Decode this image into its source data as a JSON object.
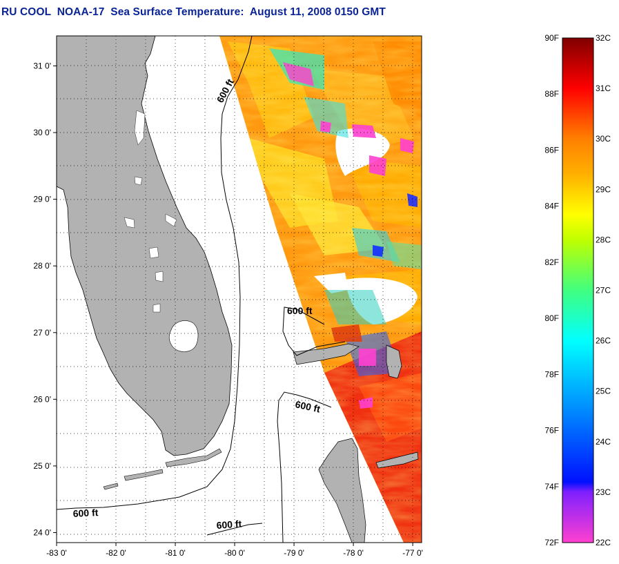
{
  "title": "RU COOL  NOAA-17  Sea Surface Temperature:  August 11, 2008 0150 GMT",
  "map": {
    "lon_range": [
      -83.0,
      -76.85
    ],
    "lat_range": [
      23.85,
      31.45
    ],
    "lon_ticks": [
      -83,
      -82,
      -81,
      -80,
      -79,
      -78,
      -77
    ],
    "lon_tick_labels": [
      "-83 0'",
      "-82 0'",
      "-81 0'",
      "-80 0'",
      "-79 0'",
      "-78 0'",
      "-77 0'"
    ],
    "lat_ticks": [
      24,
      25,
      26,
      27,
      28,
      29,
      30,
      31
    ],
    "lat_tick_labels": [
      "24 0'",
      "25 0'",
      "26 0'",
      "27 0'",
      "28 0'",
      "29 0'",
      "30 0'",
      "31 0'"
    ],
    "grid": "dotted",
    "land_color": "#b2b2b2",
    "contour": {
      "label": "600 ft",
      "label_count": 5
    }
  },
  "colorbar": {
    "fahrenheit_labels": [
      "90F",
      "88F",
      "86F",
      "84F",
      "82F",
      "80F",
      "78F",
      "76F",
      "74F",
      "72F"
    ],
    "celsius_labels": [
      "32C",
      "31C",
      "30C",
      "29C",
      "28C",
      "27C",
      "26C",
      "25C",
      "24C",
      "23C",
      "22C"
    ],
    "range_f": [
      72,
      90
    ],
    "range_c": [
      22,
      32
    ],
    "stops": [
      {
        "c": 22,
        "color": "#ff40d0"
      },
      {
        "c": 23,
        "color": "#8020ff"
      },
      {
        "c": 23.2,
        "color": "#0010ff"
      },
      {
        "c": 24.5,
        "color": "#0080ff"
      },
      {
        "c": 26,
        "color": "#00ffff"
      },
      {
        "c": 27,
        "color": "#40ff80"
      },
      {
        "c": 28,
        "color": "#c0ff00"
      },
      {
        "c": 28.5,
        "color": "#ffff00"
      },
      {
        "c": 29.3,
        "color": "#ffb000"
      },
      {
        "c": 30,
        "color": "#ff8000"
      },
      {
        "c": 31,
        "color": "#ff0000"
      },
      {
        "c": 32,
        "color": "#800000"
      }
    ]
  }
}
